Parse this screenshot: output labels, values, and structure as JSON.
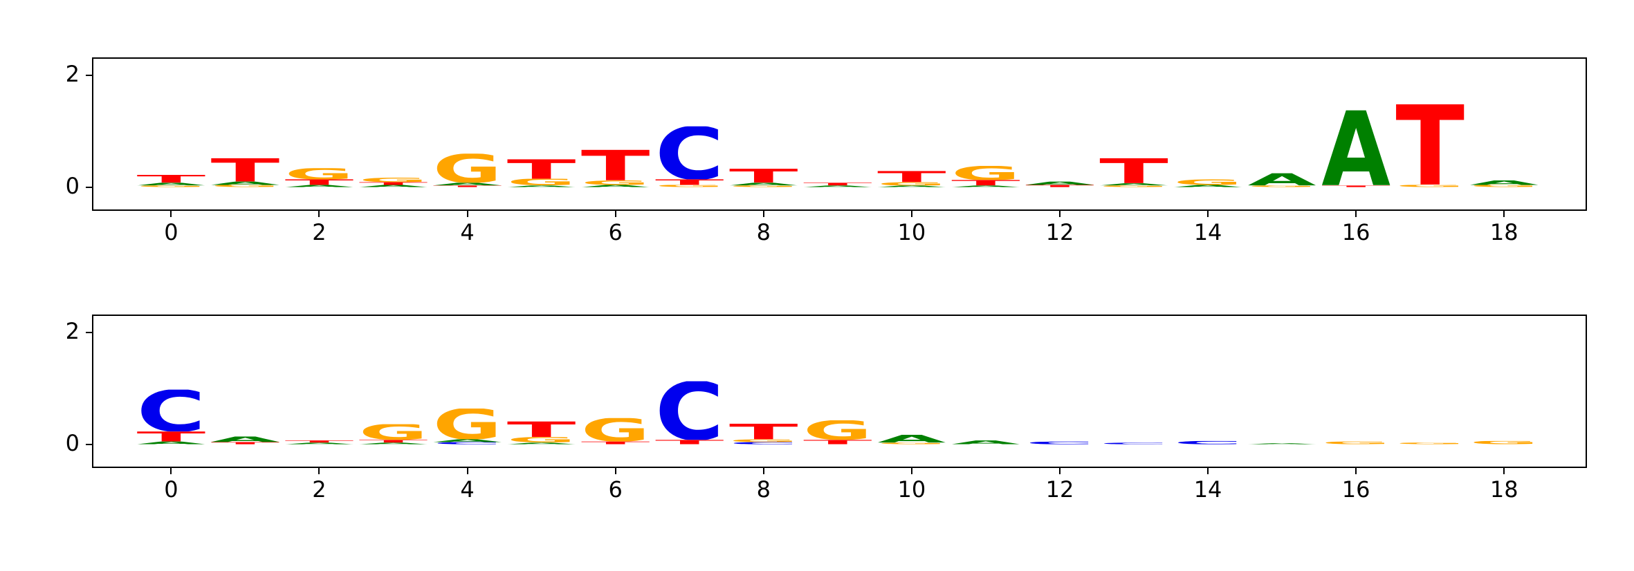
{
  "figure": {
    "background": "#ffffff",
    "letter_colors": {
      "A": "#008000",
      "C": "#0000ee",
      "G": "#ffa500",
      "T": "#ff0000"
    }
  },
  "chart_data": [
    {
      "type": "bar",
      "subtype": "sequence_logo",
      "title": "",
      "xlabel": "",
      "ylabel": "",
      "xlim": [
        -1.05,
        19.1
      ],
      "ylim": [
        -0.4,
        2.3
      ],
      "xticks": [
        0,
        2,
        4,
        6,
        8,
        10,
        12,
        14,
        16,
        18
      ],
      "yticks": [
        0,
        2
      ],
      "grid": false,
      "legend": "none",
      "positions": [
        {
          "x": 0,
          "stack": [
            [
              "G",
              0.03
            ],
            [
              "A",
              0.05
            ],
            [
              "T",
              0.14
            ]
          ]
        },
        {
          "x": 1,
          "stack": [
            [
              "G",
              0.04
            ],
            [
              "A",
              0.06
            ],
            [
              "T",
              0.42
            ]
          ]
        },
        {
          "x": 2,
          "stack": [
            [
              "A",
              0.04
            ],
            [
              "T",
              0.1
            ],
            [
              "G",
              0.2
            ]
          ]
        },
        {
          "x": 3,
          "stack": [
            [
              "A",
              0.04
            ],
            [
              "T",
              0.05
            ],
            [
              "G",
              0.08
            ]
          ]
        },
        {
          "x": 4,
          "stack": [
            [
              "T",
              0.03
            ],
            [
              "A",
              0.05
            ],
            [
              "G",
              0.52
            ]
          ]
        },
        {
          "x": 5,
          "stack": [
            [
              "A",
              0.03
            ],
            [
              "G",
              0.12
            ],
            [
              "T",
              0.35
            ]
          ]
        },
        {
          "x": 6,
          "stack": [
            [
              "A",
              0.04
            ],
            [
              "G",
              0.08
            ],
            [
              "T",
              0.55
            ]
          ]
        },
        {
          "x": 7,
          "stack": [
            [
              "G",
              0.04
            ],
            [
              "T",
              0.1
            ],
            [
              "C",
              0.95
            ]
          ]
        },
        {
          "x": 8,
          "stack": [
            [
              "G",
              0.03
            ],
            [
              "A",
              0.05
            ],
            [
              "T",
              0.25
            ]
          ]
        },
        {
          "x": 9,
          "stack": [
            [
              "A",
              0.03
            ],
            [
              "T",
              0.05
            ]
          ]
        },
        {
          "x": 10,
          "stack": [
            [
              "A",
              0.03
            ],
            [
              "G",
              0.06
            ],
            [
              "T",
              0.2
            ]
          ]
        },
        {
          "x": 11,
          "stack": [
            [
              "A",
              0.03
            ],
            [
              "T",
              0.1
            ],
            [
              "G",
              0.25
            ]
          ]
        },
        {
          "x": 12,
          "stack": [
            [
              "T",
              0.04
            ],
            [
              "A",
              0.06
            ]
          ]
        },
        {
          "x": 13,
          "stack": [
            [
              "G",
              0.03
            ],
            [
              "A",
              0.04
            ],
            [
              "T",
              0.45
            ]
          ]
        },
        {
          "x": 14,
          "stack": [
            [
              "A",
              0.04
            ],
            [
              "G",
              0.1
            ]
          ]
        },
        {
          "x": 15,
          "stack": [
            [
              "G",
              0.03
            ],
            [
              "A",
              0.22
            ]
          ]
        },
        {
          "x": 16,
          "stack": [
            [
              "T",
              0.03
            ],
            [
              "A",
              1.35
            ]
          ]
        },
        {
          "x": 17,
          "stack": [
            [
              "G",
              0.04
            ],
            [
              "T",
              1.45
            ]
          ]
        },
        {
          "x": 18,
          "stack": [
            [
              "G",
              0.04
            ],
            [
              "A",
              0.08
            ]
          ]
        }
      ]
    },
    {
      "type": "bar",
      "subtype": "sequence_logo",
      "title": "",
      "xlabel": "",
      "ylabel": "",
      "xlim": [
        -1.05,
        19.1
      ],
      "ylim": [
        -0.4,
        2.3
      ],
      "xticks": [
        0,
        2,
        4,
        6,
        8,
        10,
        12,
        14,
        16,
        18
      ],
      "yticks": [
        0,
        2
      ],
      "grid": false,
      "legend": "none",
      "positions": [
        {
          "x": 0,
          "stack": [
            [
              "A",
              0.05
            ],
            [
              "T",
              0.18
            ],
            [
              "C",
              0.75
            ]
          ]
        },
        {
          "x": 1,
          "stack": [
            [
              "T",
              0.04
            ],
            [
              "A",
              0.1
            ]
          ]
        },
        {
          "x": 2,
          "stack": [
            [
              "A",
              0.03
            ],
            [
              "T",
              0.04
            ]
          ]
        },
        {
          "x": 3,
          "stack": [
            [
              "A",
              0.03
            ],
            [
              "T",
              0.05
            ],
            [
              "G",
              0.28
            ]
          ]
        },
        {
          "x": 4,
          "stack": [
            [
              "C",
              0.04
            ],
            [
              "A",
              0.05
            ],
            [
              "G",
              0.55
            ]
          ]
        },
        {
          "x": 5,
          "stack": [
            [
              "A",
              0.03
            ],
            [
              "G",
              0.1
            ],
            [
              "T",
              0.28
            ]
          ]
        },
        {
          "x": 6,
          "stack": [
            [
              "T",
              0.05
            ],
            [
              "G",
              0.42
            ]
          ]
        },
        {
          "x": 7,
          "stack": [
            [
              "T",
              0.08
            ],
            [
              "C",
              1.05
            ]
          ]
        },
        {
          "x": 8,
          "stack": [
            [
              "C",
              0.04
            ],
            [
              "G",
              0.05
            ],
            [
              "T",
              0.28
            ]
          ]
        },
        {
          "x": 9,
          "stack": [
            [
              "T",
              0.08
            ],
            [
              "G",
              0.35
            ]
          ]
        },
        {
          "x": 10,
          "stack": [
            [
              "G",
              0.03
            ],
            [
              "A",
              0.14
            ]
          ]
        },
        {
          "x": 11,
          "stack": [
            [
              "A",
              0.07
            ]
          ]
        },
        {
          "x": 12,
          "stack": [
            [
              "C",
              0.05
            ]
          ]
        },
        {
          "x": 13,
          "stack": [
            [
              "C",
              0.03
            ]
          ]
        },
        {
          "x": 14,
          "stack": [
            [
              "C",
              0.06
            ]
          ]
        },
        {
          "x": 15,
          "stack": [
            [
              "A",
              0.02
            ]
          ]
        },
        {
          "x": 16,
          "stack": [
            [
              "G",
              0.05
            ]
          ]
        },
        {
          "x": 17,
          "stack": [
            [
              "G",
              0.03
            ]
          ]
        },
        {
          "x": 18,
          "stack": [
            [
              "G",
              0.06
            ]
          ]
        }
      ]
    }
  ]
}
